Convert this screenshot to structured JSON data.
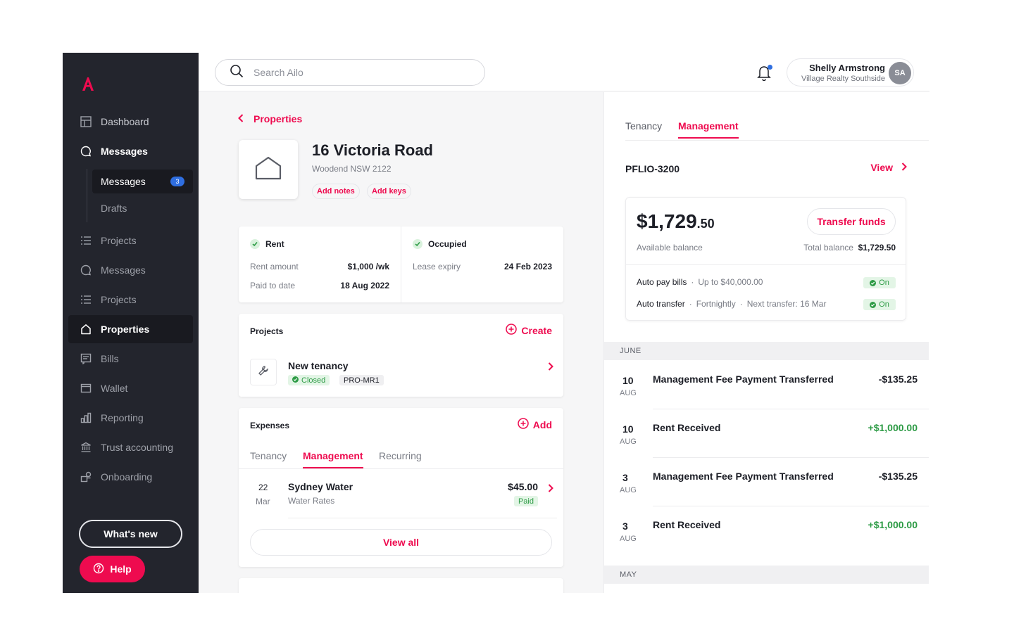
{
  "colors": {
    "brand": "#ee0b4f",
    "sidebar": "#23252d",
    "success": "#2d9b45",
    "badge": "#2f6ee0"
  },
  "sidebar": {
    "items": [
      {
        "label": "Dashboard",
        "icon": "dashboard-icon"
      },
      {
        "label": "Messages",
        "icon": "chat-icon"
      },
      {
        "label": "Projects",
        "icon": "list-icon"
      },
      {
        "label": "Messages",
        "icon": "chat-icon"
      },
      {
        "label": "Projects",
        "icon": "list-icon"
      },
      {
        "label": "Properties",
        "icon": "home-icon"
      },
      {
        "label": "Bills",
        "icon": "bill-icon"
      },
      {
        "label": "Wallet",
        "icon": "wallet-icon"
      },
      {
        "label": "Reporting",
        "icon": "chart-icon"
      },
      {
        "label": "Trust accounting",
        "icon": "bank-icon"
      },
      {
        "label": "Onboarding",
        "icon": "onboarding-icon"
      }
    ],
    "sub_items": [
      {
        "label": "Messages",
        "count": "3"
      },
      {
        "label": "Drafts"
      }
    ],
    "whats_new": "What's new",
    "help": "Help"
  },
  "topbar": {
    "search_placeholder": "Search Ailo",
    "user_name": "Shelly Armstrong",
    "user_org": "Village Realty Southside",
    "user_initials": "SA"
  },
  "property": {
    "breadcrumb": "Properties",
    "title": "16 Victoria Road",
    "address": "Woodend NSW 2122",
    "add_notes": "Add notes",
    "add_keys": "Add keys"
  },
  "rent": {
    "title": "Rent",
    "amount_label": "Rent amount",
    "amount_value": "$1,000 /wk",
    "paid_label": "Paid to date",
    "paid_value": "18 Aug 2022"
  },
  "occupancy": {
    "title": "Occupied",
    "expiry_label": "Lease expiry",
    "expiry_value": "24 Feb 2023"
  },
  "projects": {
    "title": "Projects",
    "create": "Create",
    "item_name": "New tenancy",
    "item_status": "Closed",
    "item_ref": "PRO-MR1"
  },
  "expenses": {
    "title": "Expenses",
    "add": "Add",
    "tabs": [
      "Tenancy",
      "Management",
      "Recurring"
    ],
    "active_tab": "Management",
    "item": {
      "day": "22",
      "month": "Mar",
      "name": "Sydney Water",
      "category": "Water Rates",
      "amount": "$45.00",
      "status": "Paid"
    },
    "view_all": "View all"
  },
  "right_panel": {
    "tabs": [
      "Tenancy",
      "Management"
    ],
    "active_tab": "Management",
    "folio_id": "PFLIO-3200",
    "view": "View",
    "balance_main": "$1,729",
    "balance_cents": ".50",
    "available_label": "Available balance",
    "transfer_funds": "Transfer funds",
    "total_label": "Total balance",
    "total_value": "$1,729.50",
    "auto_pay": {
      "label": "Auto pay bills",
      "detail": "Up to $40,000.00",
      "state": "On"
    },
    "auto_transfer": {
      "label": "Auto transfer",
      "frequency": "Fortnightly",
      "next": "Next transfer: 16 Mar",
      "state": "On"
    },
    "month_1": "JUNE",
    "month_2": "MAY",
    "transactions": [
      {
        "day": "10",
        "month": "AUG",
        "desc": "Management Fee Payment Transferred",
        "amount": "-$135.25",
        "type": "neg"
      },
      {
        "day": "10",
        "month": "AUG",
        "desc": "Rent Received",
        "amount": "+$1,000.00",
        "type": "pos"
      },
      {
        "day": "3",
        "month": "AUG",
        "desc": "Management Fee Payment Transferred",
        "amount": "-$135.25",
        "type": "neg"
      },
      {
        "day": "3",
        "month": "AUG",
        "desc": "Rent Received",
        "amount": "+$1,000.00",
        "type": "pos"
      }
    ]
  }
}
